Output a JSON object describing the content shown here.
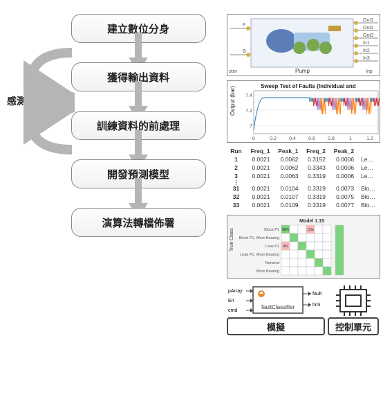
{
  "side_label": "感測器資料",
  "steps": [
    {
      "label": "建立數位分身"
    },
    {
      "label": "獲得輸出資料"
    },
    {
      "label": "訓練資料的前處理"
    },
    {
      "label": "開發預測模型"
    },
    {
      "label": "演算法轉檔佈署"
    }
  ],
  "arrow_color": "#b5b5b5",
  "box_border": "#888888",
  "thumb1": {
    "pump_label": "Pump",
    "left_labels": [
      "F",
      "B"
    ],
    "left_bottom": "otor",
    "right_labels": [
      "Out1",
      "Out2",
      "Out3",
      "In1",
      "In2",
      "In3"
    ],
    "right_bottom": "Inp",
    "port_color": "#d4b24a",
    "model_colors": {
      "body": "#5b7db8",
      "crank": "#7aa64e",
      "frame": "#a8c8e8"
    }
  },
  "thumb2": {
    "title": "Sweep Test of Faults (Individual and",
    "ylabel": "Output (bar)",
    "yticks": [
      7,
      7.2,
      7.4
    ],
    "xticks": [
      0,
      0.2,
      0.4,
      0.6,
      0.8,
      1,
      1.2
    ],
    "ylim": [
      6.9,
      7.5
    ],
    "xlim": [
      0,
      1.3
    ],
    "series_colors": [
      "#1f77b4",
      "#d62728",
      "#9467bd",
      "#ff7f0e"
    ],
    "grid_color": "#dddddd",
    "bg": "#ffffff"
  },
  "thumb3": {
    "columns": [
      "Run",
      "Freq_1",
      "Peak_1",
      "Freq_2",
      "Peak_2",
      ""
    ],
    "rows_top": [
      [
        "1",
        "0.0021",
        "0.0062",
        "0.3152",
        "0.0006",
        "Le"
      ],
      [
        "2",
        "0.0021",
        "0.0062",
        "0.3343",
        "0.0006",
        "Le"
      ],
      [
        "3",
        "0.0021",
        "0.0063",
        "0.3319",
        "0.0006",
        "Le"
      ]
    ],
    "rows_bot": [
      [
        "31",
        "0.0021",
        "0.0104",
        "0.3319",
        "0.0073",
        "Blo"
      ],
      [
        "32",
        "0.0021",
        "0.0107",
        "0.3319",
        "0.0075",
        "Blo"
      ],
      [
        "33",
        "0.0021",
        "0.0109",
        "0.3319",
        "0.0077",
        "Blo"
      ]
    ],
    "ellipsis_label": "⋮"
  },
  "thumb4": {
    "title": "Model 1.15",
    "ylabel": "True Class",
    "row_labels": [
      "Block P1",
      "Block P1, Worn Bearing",
      "Leak P1",
      "Leak P1, Worn Bearing",
      "Nominal",
      "Worn Bearing"
    ],
    "diag_color": "#7cd37c",
    "off_cells": [
      {
        "r": 0,
        "c": 3,
        "val": "12%",
        "color": "#f6baba"
      },
      {
        "r": 2,
        "c": 0,
        "val": "4%",
        "color": "#f6baba"
      }
    ],
    "diag_values": [
      "88%",
      "",
      "",
      "",
      "",
      ""
    ],
    "grid_color": "#bbbbbb",
    "bg": "#f4f4f4"
  },
  "thumb5": {
    "block_label": "faultClassifier",
    "left_ports": [
      "pArray",
      "En",
      "cmd"
    ],
    "right_ports": [
      "fault",
      "hmi"
    ],
    "sim_label": "模擬",
    "control_label": "控制單元",
    "port_arrow_color": "#444444",
    "icon_color": "#e98b2e",
    "chip_color": "#333333"
  }
}
